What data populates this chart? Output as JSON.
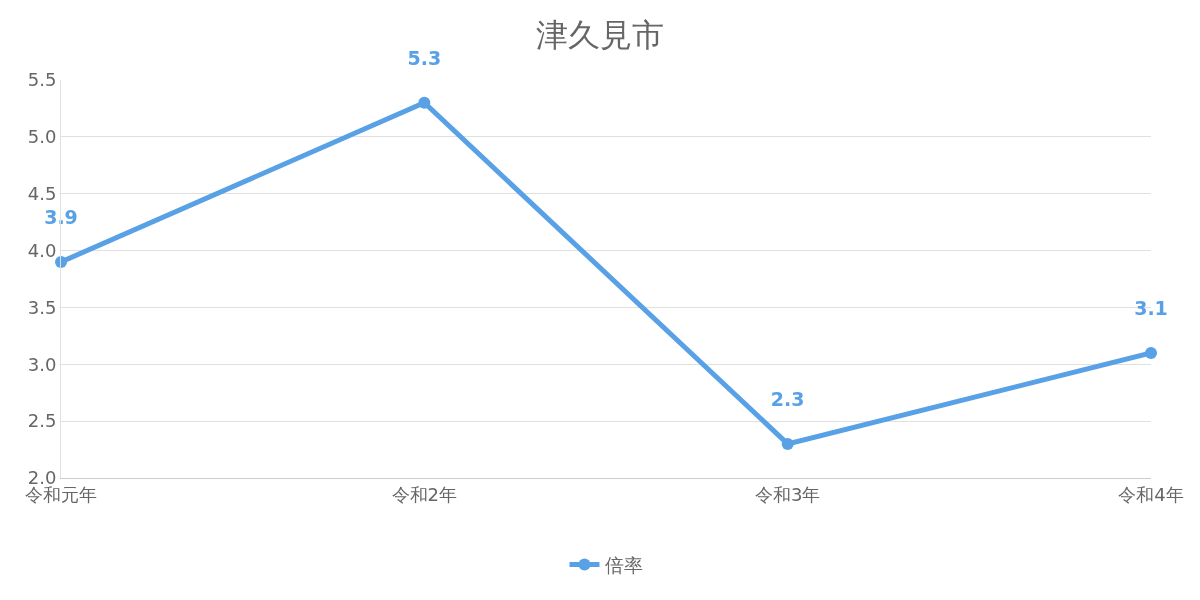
{
  "chart_data": {
    "type": "line",
    "title": "津久見市",
    "categories": [
      "令和元年",
      "令和2年",
      "令和3年",
      "令和4年"
    ],
    "series": [
      {
        "name": "倍率",
        "color": "#58a1e6",
        "values": [
          3.9,
          5.3,
          2.3,
          3.1
        ]
      }
    ],
    "ylim": [
      2.0,
      5.5
    ],
    "yticks": [
      {
        "value": 2.0,
        "label": "2.0"
      },
      {
        "value": 2.5,
        "label": "2.5"
      },
      {
        "value": 3.0,
        "label": "3.0"
      },
      {
        "value": 3.5,
        "label": "3.5"
      },
      {
        "value": 4.0,
        "label": "4.0"
      },
      {
        "value": 4.5,
        "label": "4.5"
      },
      {
        "value": 5.0,
        "label": "5.0"
      },
      {
        "value": 5.5,
        "label": "5.5"
      }
    ],
    "grid": "y",
    "legend": "bottom",
    "marker": "circle",
    "line_style": "solid",
    "data_labels": true
  }
}
